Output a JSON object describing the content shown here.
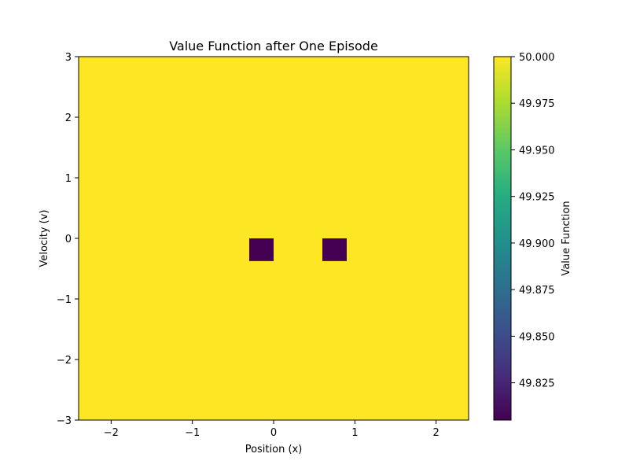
{
  "chart_data": {
    "type": "heatmap",
    "title": "Value Function after One Episode",
    "xlabel": "Position (x)",
    "ylabel": "Velocity (v)",
    "xlim": [
      -2.4,
      2.4
    ],
    "ylim": [
      -3,
      3
    ],
    "xticks": [
      -2,
      -1,
      0,
      1,
      2
    ],
    "yticks": [
      -3,
      -2,
      -1,
      0,
      1,
      2,
      3
    ],
    "xtick_labels": [
      "−2",
      "−1",
      "0",
      "1",
      "2"
    ],
    "ytick_labels": [
      "−3",
      "−2",
      "−1",
      "0",
      "1",
      "2",
      "3"
    ],
    "background_value": 50.0,
    "cells": [
      {
        "x_range": [
          -0.3,
          0.0
        ],
        "y_range": [
          -0.375,
          0.0
        ],
        "value": 49.805
      },
      {
        "x_range": [
          0.6,
          0.9
        ],
        "y_range": [
          -0.375,
          0.0
        ],
        "value": 49.805
      }
    ],
    "colorbar": {
      "label": "Value Function",
      "min": 49.805,
      "max": 50.0,
      "colormap": "viridis",
      "ticks": [
        49.825,
        49.85,
        49.875,
        49.9,
        49.925,
        49.95,
        49.975,
        50.0
      ],
      "tick_labels": [
        "49.825",
        "49.850",
        "49.875",
        "49.900",
        "49.925",
        "49.950",
        "49.975",
        "50.000"
      ]
    },
    "grid": false,
    "colors": {
      "high": "#fde725",
      "low": "#440154"
    }
  }
}
